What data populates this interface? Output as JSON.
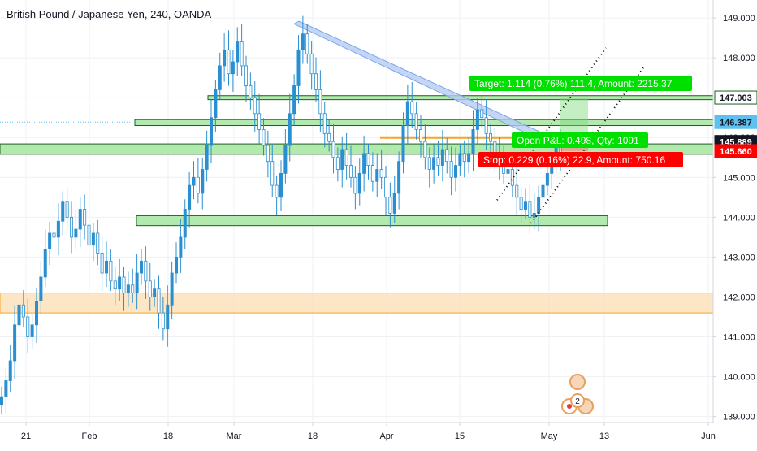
{
  "title": "British Pound / Japanese Yen, 240, OANDA",
  "colors": {
    "up": "#26a69a",
    "candle": "#2a8fd0",
    "zone_green_fill": "#a5e6a0",
    "zone_green_stroke": "#1b5e20",
    "zone_orange_fill": "#fbdcae",
    "zone_orange_stroke": "#f5a623",
    "channel_blue": "#7aa6e8",
    "dotted": "#000000",
    "target_bg": "#00e000",
    "stop_bg": "#ff0000",
    "axis_text": "#131722",
    "price_tag_dark": "#131722",
    "price_tag_blue": "#5dc0f0",
    "price_tag_red": "#ff0000"
  },
  "chart_data": {
    "type": "candlestick",
    "title": "British Pound / Japanese Yen, 240, OANDA",
    "ylim": [
      138.85,
      149.45
    ],
    "y_ticks": [
      {
        "value": 149.0,
        "label": "149.000"
      },
      {
        "value": 148.0,
        "label": "148.000"
      },
      {
        "value": 147.0,
        "label": "147.000"
      },
      {
        "value": 146.0,
        "label": "146.000"
      },
      {
        "value": 145.0,
        "label": "145.000"
      },
      {
        "value": 144.0,
        "label": "144.000"
      },
      {
        "value": 143.0,
        "label": "143.000"
      },
      {
        "value": 142.0,
        "label": "142.000"
      },
      {
        "value": 141.0,
        "label": "141.000"
      },
      {
        "value": 140.0,
        "label": "140.000"
      },
      {
        "value": 139.0,
        "label": "139.000"
      }
    ],
    "x_ticks": [
      "21",
      "Feb",
      "18",
      "Mar",
      "18",
      "Apr",
      "15",
      "May",
      "13",
      "Jun"
    ],
    "price_tags": [
      {
        "value": 147.003,
        "label": "147.003",
        "style": "outline"
      },
      {
        "value": 146.387,
        "label": "146.387",
        "style": "blue"
      },
      {
        "value": 145.889,
        "label": "145.889",
        "style": "dark"
      },
      {
        "value": 145.66,
        "label": "145.660",
        "style": "red"
      }
    ],
    "closes": [
      139.5,
      139.9,
      140.4,
      141.3,
      141.8,
      141.5,
      141.0,
      141.3,
      141.9,
      142.5,
      143.2,
      143.6,
      143.5,
      143.9,
      144.4,
      144.0,
      143.5,
      143.7,
      144.2,
      143.8,
      143.3,
      143.6,
      143.1,
      142.6,
      142.9,
      142.4,
      142.2,
      142.5,
      142.1,
      142.3,
      142.1,
      142.6,
      142.9,
      142.4,
      142.0,
      142.2,
      141.6,
      141.2,
      141.8,
      142.6,
      143.0,
      143.5,
      144.2,
      144.8,
      145.0,
      144.6,
      145.2,
      145.8,
      146.5,
      147.2,
      147.8,
      148.2,
      147.6,
      147.9,
      148.4,
      147.8,
      147.3,
      147.0,
      146.6,
      146.2,
      145.8,
      145.4,
      144.8,
      144.5,
      145.1,
      145.8,
      146.6,
      147.3,
      148.2,
      148.6,
      148.1,
      147.6,
      147.2,
      146.6,
      146.1,
      145.9,
      145.5,
      145.2,
      145.7,
      145.3,
      145.0,
      144.6,
      145.1,
      145.6,
      145.3,
      144.9,
      145.2,
      145.0,
      144.5,
      144.1,
      144.6,
      145.4,
      146.3,
      146.9,
      146.6,
      146.2,
      145.9,
      145.5,
      145.2,
      145.5,
      145.3,
      145.7,
      145.4,
      145.0,
      145.3,
      145.6,
      145.4,
      145.6,
      146.2,
      146.7,
      146.5,
      146.1,
      145.9,
      145.6,
      145.3,
      145.1,
      145.2,
      144.8,
      144.5,
      144.2,
      144.4,
      144.0,
      144.1,
      144.5,
      144.8,
      145.1,
      145.4,
      145.8,
      145.6
    ],
    "annotations": {
      "target_label": "Target: 1.114 (0.76%) 111.4, Amount: 2215.37",
      "open_label": "Open P&L: 0.498, Qty: 1091",
      "stop_label": "Stop: 0.229 (0.16%) 22.9, Amount: 750.16",
      "badge_count": "2"
    },
    "zones": [
      {
        "name": "resistance-147",
        "from": 146.95,
        "to": 147.05,
        "color": "green"
      },
      {
        "name": "zone-146",
        "from": 146.3,
        "to": 146.45,
        "color": "green"
      },
      {
        "name": "zone-145-8",
        "from": 145.58,
        "to": 145.84,
        "color": "green"
      },
      {
        "name": "support-144",
        "from": 143.79,
        "to": 144.04,
        "color": "green"
      },
      {
        "name": "demand-142",
        "from": 141.6,
        "to": 142.1,
        "color": "orange"
      }
    ]
  }
}
